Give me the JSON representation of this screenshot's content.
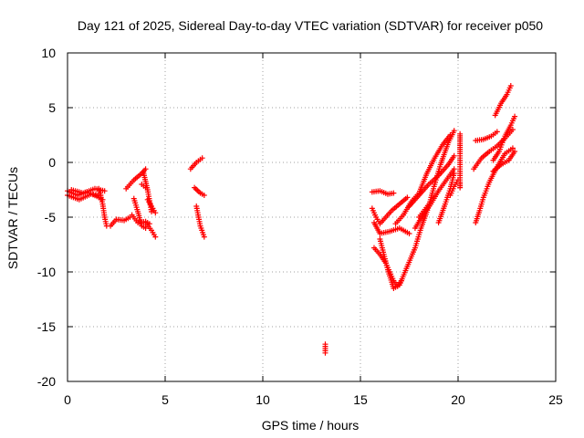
{
  "chart_data": {
    "type": "scatter",
    "title": "Day 121 of 2025, Sidereal Day-to-day VTEC variation (SDTVAR) for receiver p050",
    "xlabel": "GPS time / hours",
    "ylabel": "SDTVAR / TECUs",
    "xlim": [
      0,
      25
    ],
    "ylim": [
      -20,
      10
    ],
    "xticks": [
      "0",
      "5",
      "10",
      "15",
      "20",
      "25"
    ],
    "yticks": [
      "10",
      "5",
      "0",
      "-5",
      "-10",
      "-15",
      "-20"
    ],
    "grid": true,
    "marker": "plus",
    "color": "#ff0000",
    "tracks": [
      [
        [
          0.0,
          -2.6
        ],
        [
          0.5,
          -3.0
        ],
        [
          1.0,
          -2.7
        ],
        [
          1.5,
          -3.1
        ],
        [
          1.8,
          -3.4
        ]
      ],
      [
        [
          0.0,
          -3.0
        ],
        [
          0.6,
          -3.4
        ],
        [
          1.2,
          -2.9
        ],
        [
          1.7,
          -3.0
        ]
      ],
      [
        [
          0.2,
          -2.5
        ],
        [
          0.8,
          -2.8
        ],
        [
          1.4,
          -2.4
        ],
        [
          1.9,
          -2.6
        ]
      ],
      [
        [
          1.6,
          -2.4
        ],
        [
          1.8,
          -3.8
        ],
        [
          1.9,
          -5.0
        ],
        [
          2.0,
          -5.8
        ]
      ],
      [
        [
          2.2,
          -5.8
        ],
        [
          2.5,
          -5.2
        ],
        [
          2.9,
          -5.3
        ],
        [
          3.2,
          -5.0
        ]
      ],
      [
        [
          3.0,
          -2.4
        ],
        [
          3.4,
          -1.6
        ],
        [
          3.8,
          -1.0
        ],
        [
          4.0,
          -0.6
        ]
      ],
      [
        [
          3.3,
          -4.8
        ],
        [
          3.6,
          -5.5
        ],
        [
          4.0,
          -5.4
        ],
        [
          4.2,
          -5.6
        ]
      ],
      [
        [
          3.4,
          -3.3
        ],
        [
          3.6,
          -4.5
        ],
        [
          3.8,
          -5.8
        ],
        [
          4.0,
          -6.0
        ]
      ],
      [
        [
          3.9,
          -1.0
        ],
        [
          4.1,
          -2.5
        ],
        [
          4.2,
          -3.5
        ],
        [
          4.3,
          -4.5
        ]
      ],
      [
        [
          4.1,
          -3.4
        ],
        [
          4.3,
          -4.0
        ],
        [
          4.5,
          -4.6
        ]
      ],
      [
        [
          4.0,
          -5.5
        ],
        [
          4.3,
          -6.2
        ],
        [
          4.5,
          -6.8
        ]
      ],
      [
        [
          3.8,
          -2.0
        ],
        [
          4.0,
          -2.3
        ]
      ],
      [
        [
          6.3,
          -0.6
        ],
        [
          6.6,
          0.0
        ],
        [
          6.9,
          0.4
        ]
      ],
      [
        [
          6.5,
          -2.3
        ],
        [
          6.8,
          -2.8
        ],
        [
          7.0,
          -3.0
        ]
      ],
      [
        [
          6.6,
          -4.0
        ],
        [
          6.8,
          -5.8
        ],
        [
          7.0,
          -6.8
        ]
      ],
      [
        [
          13.2,
          -16.6
        ],
        [
          13.2,
          -17.0
        ],
        [
          13.2,
          -17.4
        ]
      ],
      [
        [
          15.6,
          -2.7
        ],
        [
          16.0,
          -2.6
        ],
        [
          16.4,
          -2.9
        ],
        [
          16.7,
          -2.8
        ]
      ],
      [
        [
          15.6,
          -4.2
        ],
        [
          15.8,
          -5.0
        ],
        [
          16.0,
          -5.6
        ],
        [
          16.3,
          -5.0
        ],
        [
          16.6,
          -4.4
        ],
        [
          17.0,
          -3.8
        ],
        [
          17.4,
          -3.2
        ]
      ],
      [
        [
          15.7,
          -5.5
        ],
        [
          16.0,
          -6.5
        ],
        [
          16.5,
          -6.3
        ],
        [
          17.0,
          -6.0
        ],
        [
          17.5,
          -6.5
        ]
      ],
      [
        [
          15.7,
          -7.8
        ],
        [
          16.0,
          -8.4
        ],
        [
          16.3,
          -9.2
        ],
        [
          16.5,
          -10.0
        ],
        [
          16.7,
          -10.8
        ],
        [
          16.9,
          -11.3
        ],
        [
          17.1,
          -10.8
        ]
      ],
      [
        [
          16.0,
          -7.0
        ],
        [
          16.4,
          -9.8
        ],
        [
          16.7,
          -11.5
        ],
        [
          17.0,
          -11.2
        ],
        [
          17.4,
          -9.5
        ],
        [
          17.8,
          -7.8
        ],
        [
          18.1,
          -6.0
        ],
        [
          18.5,
          -4.0
        ],
        [
          18.8,
          -2.0
        ],
        [
          19.1,
          -0.2
        ],
        [
          19.5,
          1.8
        ],
        [
          19.8,
          2.9
        ]
      ],
      [
        [
          16.8,
          -5.6
        ],
        [
          17.2,
          -4.8
        ],
        [
          17.6,
          -3.6
        ],
        [
          18.0,
          -2.8
        ],
        [
          18.4,
          -1.0
        ],
        [
          18.8,
          0.4
        ],
        [
          19.2,
          1.6
        ],
        [
          19.6,
          2.5
        ]
      ],
      [
        [
          17.5,
          -4.0
        ],
        [
          18.0,
          -3.0
        ],
        [
          18.5,
          -2.0
        ],
        [
          19.0,
          -1.2
        ],
        [
          19.5,
          -0.2
        ],
        [
          19.8,
          0.6
        ]
      ],
      [
        [
          17.8,
          -6.0
        ],
        [
          18.2,
          -4.8
        ],
        [
          18.6,
          -3.8
        ],
        [
          19.0,
          -2.6
        ],
        [
          19.4,
          -1.6
        ],
        [
          19.8,
          -0.6
        ]
      ],
      [
        [
          18.0,
          -5.0
        ],
        [
          18.3,
          -4.3
        ],
        [
          18.6,
          -3.6
        ]
      ],
      [
        [
          19.0,
          -5.5
        ],
        [
          19.3,
          -4.0
        ],
        [
          19.6,
          -2.4
        ],
        [
          19.8,
          -1.0
        ]
      ],
      [
        [
          19.6,
          -3.0
        ],
        [
          19.8,
          -2.2
        ],
        [
          20.0,
          -1.6
        ]
      ],
      [
        [
          20.1,
          2.6
        ],
        [
          20.1,
          1.9
        ],
        [
          20.1,
          1.2
        ],
        [
          20.1,
          -1.8
        ],
        [
          20.1,
          -2.3
        ]
      ],
      [
        [
          20.8,
          -0.6
        ],
        [
          21.2,
          0.4
        ],
        [
          21.6,
          1.0
        ],
        [
          22.0,
          1.5
        ],
        [
          22.4,
          2.2
        ],
        [
          22.8,
          3.0
        ]
      ],
      [
        [
          20.9,
          -5.5
        ],
        [
          21.1,
          -4.4
        ],
        [
          21.3,
          -3.2
        ],
        [
          21.6,
          -1.8
        ],
        [
          22.0,
          -0.4
        ],
        [
          22.4,
          0.8
        ],
        [
          22.8,
          1.3
        ]
      ],
      [
        [
          20.9,
          2.0
        ],
        [
          21.3,
          2.1
        ],
        [
          21.7,
          2.4
        ],
        [
          22.0,
          2.8
        ]
      ],
      [
        [
          21.8,
          0.2
        ],
        [
          22.1,
          1.0
        ],
        [
          22.4,
          2.4
        ],
        [
          22.7,
          3.4
        ],
        [
          22.9,
          4.2
        ]
      ],
      [
        [
          21.8,
          -0.8
        ],
        [
          22.2,
          -0.2
        ],
        [
          22.6,
          0.2
        ],
        [
          22.9,
          1.0
        ]
      ],
      [
        [
          21.9,
          4.3
        ],
        [
          22.2,
          5.4
        ],
        [
          22.5,
          6.2
        ],
        [
          22.7,
          7.0
        ]
      ]
    ]
  }
}
